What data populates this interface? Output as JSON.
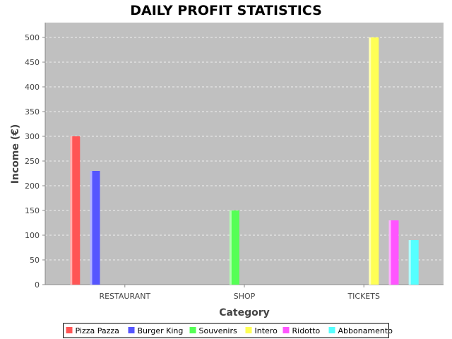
{
  "chart_data": {
    "type": "bar",
    "title": "DAILY PROFIT STATISTICS",
    "xlabel": "Category",
    "ylabel": "Income (€)",
    "ylim": [
      0,
      530
    ],
    "yticks": [
      0,
      50,
      100,
      150,
      200,
      250,
      300,
      350,
      400,
      450,
      500
    ],
    "grid": true,
    "legend_position": "bottom",
    "categories": [
      "RESTAURANT",
      "SHOP",
      "TICKETS"
    ],
    "series": [
      {
        "name": "Pizza Pazza",
        "color": "#ff5555",
        "values": [
          300,
          0,
          0
        ]
      },
      {
        "name": "Burger King",
        "color": "#5555ff",
        "values": [
          230,
          0,
          0
        ]
      },
      {
        "name": "Souvenirs",
        "color": "#55ff55",
        "values": [
          0,
          150,
          0
        ]
      },
      {
        "name": "Intero",
        "color": "#ffff55",
        "values": [
          0,
          0,
          500
        ]
      },
      {
        "name": "Ridotto",
        "color": "#ff55ff",
        "values": [
          0,
          0,
          130
        ]
      },
      {
        "name": "Abbonamento",
        "color": "#55ffff",
        "values": [
          0,
          0,
          90
        ]
      }
    ],
    "colors": {
      "plot_background": "#c0c0c0",
      "gridline": "#ffffff",
      "axis": "#888888"
    }
  }
}
